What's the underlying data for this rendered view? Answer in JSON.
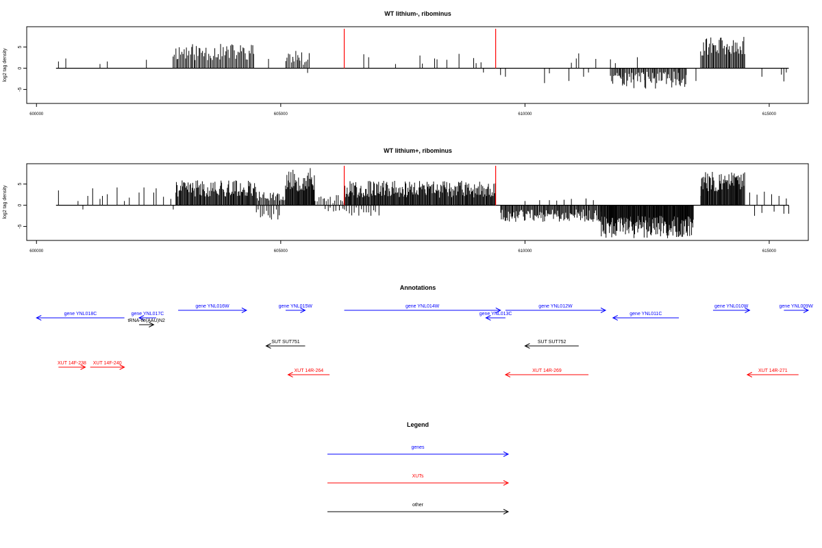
{
  "colors": {
    "gene": "#0000ff",
    "xut": "#ff0000",
    "other": "#000000",
    "marker": "#ff0000",
    "bars": "#000000"
  },
  "chart_data": [
    {
      "type": "bar",
      "title": "WT lithium-, ribominus",
      "ylabel": "log2 tag density",
      "xlabel": "",
      "xlim": [
        599800,
        615800
      ],
      "ylim": [
        -8.3,
        9.8
      ],
      "x_ticks": [
        600000,
        605000,
        610000,
        615000
      ],
      "y_ticks": [
        5,
        0,
        -5
      ],
      "baseline": [
        600400,
        615400
      ],
      "markers": [
        606300,
        609400
      ],
      "grid": false,
      "approximate": true,
      "series": [
        {
          "points": [
            [
              600450,
              1.6
            ],
            [
              600600,
              2.3
            ],
            [
              601300,
              1.0
            ],
            [
              601450,
              1.6
            ],
            [
              602250,
              2.0
            ],
            [
              604750,
              2.2
            ],
            [
              605250,
              2.2
            ],
            [
              605350,
              3.1
            ],
            [
              605550,
              -1.1
            ],
            [
              606700,
              3.3
            ],
            [
              606800,
              2.6
            ],
            [
              607350,
              1.0
            ],
            [
              607850,
              3.0
            ],
            [
              607900,
              1.1
            ],
            [
              608150,
              2.3
            ],
            [
              608200,
              2.1
            ],
            [
              608400,
              2.0
            ],
            [
              608650,
              3.4
            ],
            [
              608950,
              2.4
            ],
            [
              609000,
              1.2
            ],
            [
              609500,
              -1.6
            ],
            [
              609600,
              -2.0
            ],
            [
              610400,
              -3.5
            ],
            [
              610500,
              -1.2
            ],
            [
              610900,
              -3.0
            ],
            [
              610950,
              1.3
            ],
            [
              611050,
              2.3
            ],
            [
              611100,
              3.5
            ],
            [
              611200,
              -2.0
            ],
            [
              611300,
              -1.0
            ],
            [
              611450,
              2.2
            ],
            [
              611750,
              2.1
            ],
            [
              611850,
              1.2
            ],
            [
              611950,
              -2.2
            ],
            [
              612000,
              -2.0
            ],
            [
              612300,
              2.6
            ],
            [
              612450,
              -2.8
            ],
            [
              612650,
              -2.4
            ],
            [
              613150,
              -3.0
            ],
            [
              613300,
              -1.6
            ],
            [
              613500,
              -3.0
            ],
            [
              614850,
              -2.0
            ],
            [
              615250,
              -1.5
            ],
            [
              615300,
              -3.1
            ],
            [
              615350,
              -1.0
            ],
            [
              609100,
              1.4
            ],
            [
              609150,
              -1.0
            ]
          ]
        },
        {
          "range": [
            602800,
            604450
          ],
          "step": 25,
          "max": 5.8,
          "min": 1.8,
          "seed": 11
        },
        {
          "range": [
            605100,
            605600
          ],
          "step": 30,
          "max": 4.5,
          "min": 0.8,
          "seed": 17
        },
        {
          "range": [
            611750,
            613300
          ],
          "step": 22,
          "max": 4.8,
          "min": 0.8,
          "sign": -1,
          "seed": 23
        },
        {
          "range": [
            613600,
            614500
          ],
          "step": 20,
          "max": 7.5,
          "min": 2.8,
          "seed": 31
        }
      ]
    },
    {
      "type": "bar",
      "title": "WT lithium+, ribominus",
      "ylabel": "log2 tag density",
      "xlabel": "",
      "xlim": [
        599800,
        615800
      ],
      "ylim": [
        -8.3,
        9.8
      ],
      "x_ticks": [
        600000,
        605000,
        610000,
        615000
      ],
      "y_ticks": [
        5,
        0,
        -5
      ],
      "baseline": [
        600400,
        615400
      ],
      "markers": [
        606300,
        609400
      ],
      "grid": false,
      "approximate": true,
      "series": [
        {
          "points": [
            [
              600450,
              3.5
            ],
            [
              600850,
              1.0
            ],
            [
              600950,
              -1.0
            ],
            [
              601050,
              2.2
            ],
            [
              601150,
              4.0
            ],
            [
              601300,
              1.5
            ],
            [
              601350,
              2.2
            ],
            [
              601450,
              2.6
            ],
            [
              601650,
              4.2
            ],
            [
              601800,
              1.0
            ],
            [
              601900,
              1.8
            ],
            [
              602100,
              3.0
            ],
            [
              602200,
              4.2
            ],
            [
              602400,
              3.0
            ],
            [
              602450,
              4.0
            ],
            [
              602600,
              2.0
            ],
            [
              602750,
              1.5
            ],
            [
              602800,
              -1.0
            ],
            [
              609600,
              -1.2
            ],
            [
              610000,
              1.0
            ],
            [
              610300,
              1.2
            ],
            [
              610400,
              -2.0
            ],
            [
              610500,
              1.2
            ],
            [
              610650,
              1.1
            ],
            [
              610700,
              -2.0
            ],
            [
              610800,
              1.3
            ],
            [
              610950,
              1.5
            ],
            [
              611100,
              -2.0
            ],
            [
              611250,
              1.6
            ],
            [
              611400,
              1.2
            ],
            [
              611550,
              -1.5
            ],
            [
              613600,
              2.2
            ],
            [
              614600,
              3.0
            ],
            [
              614700,
              -2.5
            ],
            [
              614750,
              2.5
            ],
            [
              614850,
              -1.8
            ],
            [
              614900,
              3.2
            ],
            [
              615050,
              2.6
            ],
            [
              615100,
              -1.5
            ],
            [
              615200,
              2.2
            ],
            [
              615300,
              -2.0
            ],
            [
              615350,
              1.6
            ],
            [
              615400,
              -2.0
            ]
          ]
        },
        {
          "range": [
            602850,
            604500
          ],
          "step": 16,
          "max": 5.9,
          "min": 2.0,
          "seed": 41
        },
        {
          "range": [
            604500,
            605100
          ],
          "step": 22,
          "max": 3.5,
          "min": 1.0,
          "seed": 43
        },
        {
          "range": [
            604500,
            605000
          ],
          "step": 40,
          "max": 3.6,
          "min": 1.0,
          "sign": -1,
          "seed": 47
        },
        {
          "range": [
            605100,
            605700
          ],
          "step": 14,
          "max": 8.8,
          "min": 3.2,
          "seed": 53
        },
        {
          "range": [
            605700,
            606300
          ],
          "step": 40,
          "max": 2.5,
          "min": 0.5,
          "seed": 59
        },
        {
          "range": [
            605900,
            606300
          ],
          "step": 60,
          "max": 2.0,
          "min": 0.5,
          "sign": -1,
          "seed": 61
        },
        {
          "range": [
            606300,
            609400
          ],
          "step": 15,
          "max": 5.8,
          "min": 1.8,
          "seed": 67
        },
        {
          "range": [
            606300,
            607000
          ],
          "step": 50,
          "max": 2.5,
          "min": 0.5,
          "sign": -1,
          "seed": 71
        },
        {
          "range": [
            609500,
            611550
          ],
          "step": 18,
          "max": 3.9,
          "min": 1.0,
          "sign": -1,
          "seed": 73
        },
        {
          "range": [
            611550,
            613450
          ],
          "step": 12,
          "max": 7.8,
          "min": 2.5,
          "sign": -1,
          "seed": 79
        },
        {
          "range": [
            613600,
            614500
          ],
          "step": 14,
          "max": 8.0,
          "min": 3.2,
          "seed": 83
        }
      ]
    },
    {
      "type": "annotation_track",
      "title": "Annotations",
      "xlim": [
        599800,
        615800
      ],
      "features": [
        {
          "label": "gene YNL018C",
          "kind": "gene",
          "start": 600000,
          "end": 601800,
          "strand": "-",
          "row": 1
        },
        {
          "label": "gene YNL017C",
          "kind": "gene",
          "start": 602100,
          "end": 602450,
          "strand": "-",
          "row": 1
        },
        {
          "label": "tRNA-Ile(AAU)N2",
          "kind": "other",
          "start": 602100,
          "end": 602400,
          "strand": "+",
          "row": 2
        },
        {
          "label": "gene YNL016W",
          "kind": "gene",
          "start": 602900,
          "end": 604300,
          "strand": "+",
          "row": 0
        },
        {
          "label": "gene YNL015W",
          "kind": "gene",
          "start": 605100,
          "end": 605500,
          "strand": "+",
          "row": 0
        },
        {
          "label": "gene YNL014W",
          "kind": "gene",
          "start": 606300,
          "end": 609500,
          "strand": "+",
          "row": 0
        },
        {
          "label": "gene YNL013C",
          "kind": "gene",
          "start": 609200,
          "end": 609600,
          "strand": "-",
          "row": 1
        },
        {
          "label": "gene YNL012W",
          "kind": "gene",
          "start": 609600,
          "end": 611650,
          "strand": "+",
          "row": 0
        },
        {
          "label": "gene YNL011C",
          "kind": "gene",
          "start": 611800,
          "end": 613150,
          "strand": "-",
          "row": 1
        },
        {
          "label": "gene YNL010W",
          "kind": "gene",
          "start": 613850,
          "end": 614600,
          "strand": "+",
          "row": 0
        },
        {
          "label": "gene YNL009W",
          "kind": "gene",
          "start": 615300,
          "end": 615800,
          "strand": "+",
          "row": 0
        },
        {
          "label": "SUT SUT751",
          "kind": "other",
          "start": 604700,
          "end": 605500,
          "strand": "-",
          "row": 4
        },
        {
          "label": "SUT SUT752",
          "kind": "other",
          "start": 610000,
          "end": 611100,
          "strand": "-",
          "row": 4
        },
        {
          "label": "XUT 14F-238",
          "kind": "xut",
          "start": 600450,
          "end": 601000,
          "strand": "+",
          "row": 6
        },
        {
          "label": "XUT 14F-240",
          "kind": "xut",
          "start": 601100,
          "end": 601800,
          "strand": "+",
          "row": 6
        },
        {
          "label": "XUT 14R-264",
          "kind": "xut",
          "start": 605150,
          "end": 606000,
          "strand": "-",
          "row": 7
        },
        {
          "label": "XUT 14R-269",
          "kind": "xut",
          "start": 609600,
          "end": 611300,
          "strand": "-",
          "row": 7
        },
        {
          "label": "XUT 14R-271",
          "kind": "xut",
          "start": 614550,
          "end": 615600,
          "strand": "-",
          "row": 7
        }
      ]
    },
    {
      "type": "legend",
      "title": "Legend",
      "entries": [
        {
          "label": "genes",
          "kind": "gene"
        },
        {
          "label": "XUTs",
          "kind": "xut"
        },
        {
          "label": "other",
          "kind": "other"
        }
      ]
    }
  ]
}
